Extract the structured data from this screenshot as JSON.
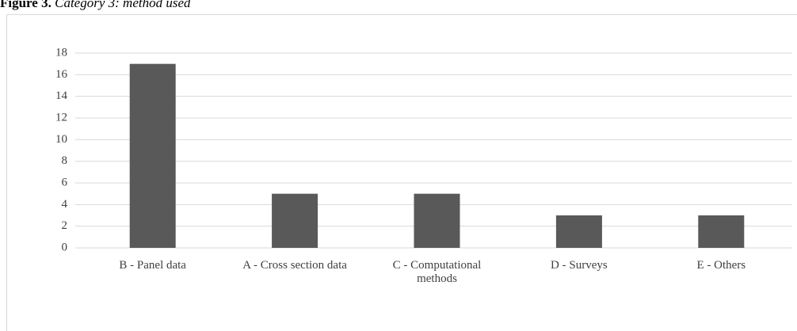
{
  "chart_data": {
    "type": "bar",
    "figure_label": "Figure 3.",
    "title": "Category 3: method used",
    "categories": [
      "B - Panel data",
      "A - Cross section data",
      "C - Computational methods",
      "D - Surveys",
      "E - Others"
    ],
    "values": [
      17,
      5,
      5,
      3,
      3
    ],
    "color": "#595959",
    "ylim": [
      0,
      18
    ],
    "yticks": [
      0,
      2,
      4,
      6,
      8,
      10,
      12,
      14,
      16,
      18
    ],
    "grid": true
  }
}
